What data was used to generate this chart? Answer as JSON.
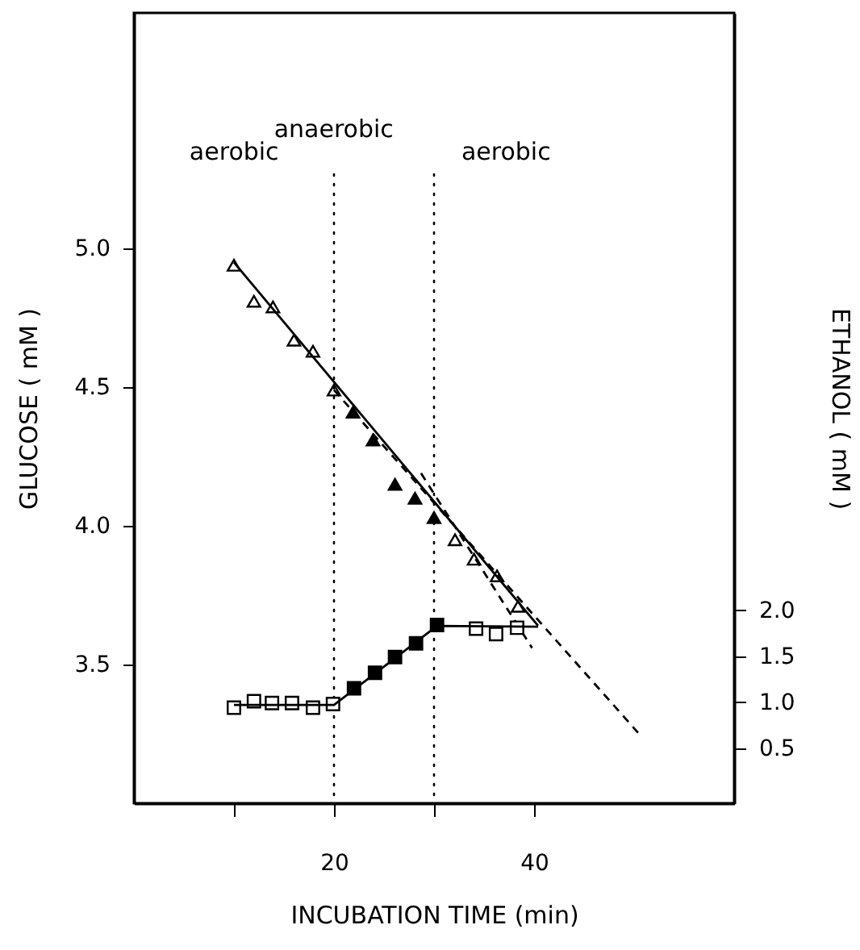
{
  "chart_data": {
    "type": "scatter",
    "xlabel": "INCUBATION TIME (min)",
    "ylabel": "GLUCOSE ( mM )",
    "y2label": "ETHANOL ( mM )",
    "xlim": [
      0,
      60
    ],
    "xticks": [
      {
        "value": 10,
        "label": null
      },
      20,
      {
        "value": 30,
        "label": null
      },
      40
    ],
    "ylim": [
      3.0,
      5.85
    ],
    "yticks": [
      3.5,
      {
        "value": 4,
        "label": "4.0"
      },
      4.5,
      {
        "value": 5,
        "label": "5.0"
      }
    ],
    "y2lim": [
      -0.1,
      8.5
    ],
    "y2ticks": [
      0.5,
      {
        "value": 1,
        "label": "1.0"
      },
      1.5,
      {
        "value": 2,
        "label": "2.0"
      }
    ],
    "grid": false,
    "series": [
      {
        "marker": "triangle",
        "color": "#ffffff",
        "x": [
          10,
          12.0,
          13.9,
          16.0,
          17.9,
          20
        ],
        "values": [
          4.94,
          4.81,
          4.79,
          4.67,
          4.63,
          4.49
        ]
      },
      {
        "marker": "triangle",
        "color": "#000000",
        "x": [
          21.9,
          23.9,
          26.1,
          28.1,
          30
        ],
        "values": [
          4.41,
          4.31,
          4.15,
          4.1,
          4.03
        ]
      },
      {
        "marker": "triangle",
        "color": "#ffffff",
        "x": [
          32.1,
          34.0,
          36.3,
          38.4
        ],
        "values": [
          3.95,
          3.88,
          3.82,
          3.71
        ]
      },
      {
        "type": "line",
        "line_style": "solid",
        "color": "#000000",
        "x": [
          10,
          40.4
        ],
        "values": [
          4.95,
          3.64
        ]
      },
      {
        "type": "line",
        "line_style": "dashed",
        "color": "#000000",
        "x": [
          20,
          50.5
        ],
        "values": [
          4.49,
          3.25
        ]
      },
      {
        "type": "line",
        "line_style": "dashed",
        "color": "#000000",
        "x": [
          28.7,
          39.8
        ],
        "values": [
          4.19,
          3.56
        ]
      },
      {
        "axis": "y2",
        "marker": "square",
        "color": "#ffffff",
        "x": [
          10,
          12,
          13.8,
          15.8,
          17.9,
          19.9
        ],
        "values": [
          0.94,
          1.01,
          0.99,
          0.99,
          0.94,
          0.98
        ]
      },
      {
        "axis": "y2",
        "marker": "square",
        "color": "#000000",
        "x": [
          22.0,
          24.1,
          26.1,
          28.2,
          30.3
        ],
        "values": [
          1.15,
          1.32,
          1.49,
          1.64,
          1.84
        ]
      },
      {
        "axis": "y2",
        "marker": "square",
        "color": "#ffffff",
        "x": [
          34.2,
          36.2,
          38.3
        ],
        "values": [
          1.8,
          1.74,
          1.81
        ]
      },
      {
        "type": "line",
        "axis": "y2",
        "line_style": "solid",
        "color": "#000000",
        "x": [
          10,
          20,
          30.3,
          40.4
        ],
        "values": [
          0.97,
          0.97,
          1.83,
          1.82
        ]
      }
    ],
    "ref_lines": [
      {
        "axis": "x",
        "value": 20,
        "line_style": "dotted"
      },
      {
        "axis": "x",
        "value": 30,
        "line_style": "dotted"
      }
    ],
    "annotations": [
      "aerobic",
      "anaerobic",
      "aerobic"
    ]
  }
}
